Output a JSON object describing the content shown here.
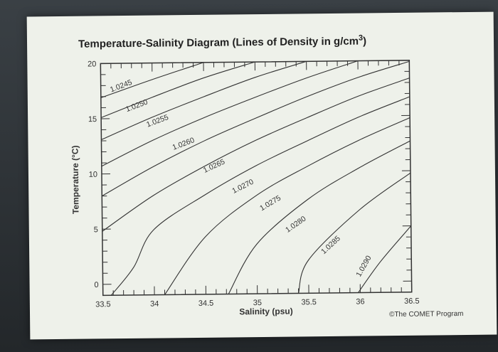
{
  "chart_data": {
    "type": "line",
    "title": "Temperature-Salinity Diagram (Lines of Density in g/cm",
    "title_superscript": "3",
    "title_close": ")",
    "xlabel": "Salinity (psu)",
    "ylabel": "Temperature (°C)",
    "xlim": [
      33.5,
      36.5
    ],
    "ylim": [
      -1,
      20
    ],
    "xticks": [
      33.5,
      34,
      34.5,
      35,
      35.5,
      36,
      36.5
    ],
    "xtick_labels": [
      "33.5",
      "34",
      "34.5",
      "35",
      "35.5",
      "36",
      "36.5"
    ],
    "yticks": [
      0,
      5,
      10,
      15,
      20
    ],
    "ytick_labels": [
      "0",
      "5",
      "10",
      "15",
      "20"
    ],
    "grid": false,
    "series": [
      {
        "name": "1.0245",
        "points": [
          [
            33.5,
            16.9
          ],
          [
            34.0,
            18.5
          ],
          [
            34.5,
            20.0
          ]
        ]
      },
      {
        "name": "1.0250",
        "points": [
          [
            33.5,
            15.1
          ],
          [
            34.0,
            16.9
          ],
          [
            34.5,
            18.6
          ],
          [
            35.0,
            20.0
          ]
        ]
      },
      {
        "name": "1.0255",
        "points": [
          [
            33.5,
            13.1
          ],
          [
            34.0,
            15.1
          ],
          [
            34.5,
            16.9
          ],
          [
            35.0,
            18.6
          ],
          [
            35.5,
            20.0
          ]
        ]
      },
      {
        "name": "1.0260",
        "points": [
          [
            33.5,
            10.7
          ],
          [
            34.0,
            13.0
          ],
          [
            34.5,
            15.0
          ],
          [
            35.0,
            16.8
          ],
          [
            35.5,
            18.5
          ],
          [
            36.0,
            20.0
          ]
        ]
      },
      {
        "name": "1.0265",
        "points": [
          [
            33.5,
            8.0
          ],
          [
            34.0,
            10.6
          ],
          [
            34.5,
            12.9
          ],
          [
            35.0,
            14.9
          ],
          [
            35.5,
            16.8
          ],
          [
            36.0,
            18.5
          ],
          [
            36.5,
            19.9
          ]
        ]
      },
      {
        "name": "1.0270",
        "points": [
          [
            33.5,
            4.8
          ],
          [
            34.0,
            8.0
          ],
          [
            34.5,
            10.6
          ],
          [
            35.0,
            12.9
          ],
          [
            35.5,
            14.9
          ],
          [
            36.0,
            16.8
          ],
          [
            36.5,
            18.4
          ]
        ]
      },
      {
        "name": "1.0275",
        "points": [
          [
            33.58,
            -1.0
          ],
          [
            33.8,
            1.5
          ],
          [
            34.0,
            4.9
          ],
          [
            34.5,
            8.0
          ],
          [
            35.0,
            10.6
          ],
          [
            35.5,
            12.8
          ],
          [
            36.0,
            14.9
          ],
          [
            36.5,
            16.7
          ]
        ]
      },
      {
        "name": "1.0280",
        "points": [
          [
            34.1,
            -1.0
          ],
          [
            34.5,
            4.2
          ],
          [
            35.0,
            7.9
          ],
          [
            35.5,
            10.5
          ],
          [
            36.0,
            12.8
          ],
          [
            36.5,
            14.8
          ]
        ]
      },
      {
        "name": "1.0285",
        "points": [
          [
            34.72,
            -1.0
          ],
          [
            35.0,
            3.5
          ],
          [
            35.5,
            7.5
          ],
          [
            36.0,
            10.3
          ],
          [
            36.5,
            12.7
          ]
        ]
      },
      {
        "name": "1.0290",
        "points": [
          [
            35.4,
            -1.0
          ],
          [
            35.5,
            2.0
          ],
          [
            36.0,
            6.5
          ],
          [
            36.5,
            9.8
          ]
        ]
      },
      {
        "name": "",
        "points": [
          [
            35.98,
            -1.0
          ],
          [
            36.2,
            1.8
          ],
          [
            36.5,
            5.0
          ]
        ]
      }
    ],
    "contour_labels": [
      {
        "text": "1.0245",
        "x": 33.6,
        "y": 17.4,
        "angle": -20
      },
      {
        "text": "1.0250",
        "x": 33.75,
        "y": 15.6,
        "angle": -20
      },
      {
        "text": "1.0255",
        "x": 33.95,
        "y": 14.2,
        "angle": -20
      },
      {
        "text": "1.0260",
        "x": 34.2,
        "y": 12.1,
        "angle": -20
      },
      {
        "text": "1.0265",
        "x": 34.5,
        "y": 10.0,
        "angle": -24
      },
      {
        "text": "1.0270",
        "x": 34.78,
        "y": 8.1,
        "angle": -26
      },
      {
        "text": "1.0275",
        "x": 35.05,
        "y": 6.5,
        "angle": -30
      },
      {
        "text": "1.0280",
        "x": 35.3,
        "y": 4.5,
        "angle": -34
      },
      {
        "text": "1.0285",
        "x": 35.65,
        "y": 2.5,
        "angle": -42
      },
      {
        "text": "1.0290",
        "x": 36.0,
        "y": 0.4,
        "angle": -60
      }
    ],
    "credit": "©The COMET Program"
  }
}
